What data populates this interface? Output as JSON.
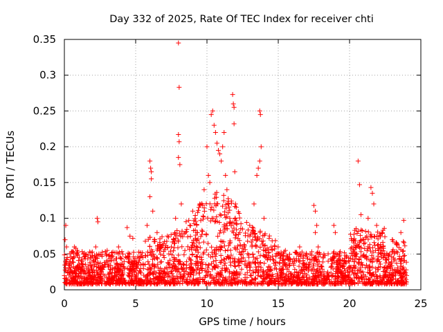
{
  "chart_data": {
    "type": "scatter",
    "title": "Day 332 of 2025, Rate Of TEC Index for receiver chti",
    "xlabel": "GPS time / hours",
    "ylabel": "ROTI / TECUs",
    "xlim": [
      0,
      25
    ],
    "ylim": [
      0,
      0.35
    ],
    "xticks": [
      0,
      5,
      10,
      15,
      20,
      25
    ],
    "xtick_labels": [
      "0",
      "5",
      "10",
      "15",
      "20",
      "25"
    ],
    "yticks": [
      0,
      0.05,
      0.1,
      0.15,
      0.2,
      0.25,
      0.3,
      0.35
    ],
    "ytick_labels": [
      "0",
      "0.05",
      "0.1",
      "0.15",
      "0.2",
      "0.25",
      "0.3",
      "0.35"
    ],
    "grid": true,
    "marker": "+",
    "color": "#ff0000",
    "series": [
      {
        "values": [
          [
            0.0,
            0.02
          ],
          [
            0.05,
            0.07
          ],
          [
            0.1,
            0.09
          ],
          [
            0.15,
            0.06
          ],
          [
            0.2,
            0.045
          ],
          [
            0.3,
            0.03
          ],
          [
            0.5,
            0.025
          ],
          [
            0.7,
            0.06
          ],
          [
            0.8,
            0.058
          ],
          [
            0.9,
            0.055
          ],
          [
            1.0,
            0.02
          ],
          [
            1.3,
            0.035
          ],
          [
            1.6,
            0.015
          ],
          [
            2.0,
            0.04
          ],
          [
            2.3,
            0.1
          ],
          [
            2.35,
            0.095
          ],
          [
            2.2,
            0.06
          ],
          [
            2.5,
            0.03
          ],
          [
            3.0,
            0.055
          ],
          [
            3.2,
            0.04
          ],
          [
            3.5,
            0.02
          ],
          [
            3.8,
            0.06
          ],
          [
            4.1,
            0.05
          ],
          [
            4.4,
            0.087
          ],
          [
            4.6,
            0.075
          ],
          [
            4.8,
            0.072
          ],
          [
            5.0,
            0.03
          ],
          [
            5.5,
            0.045
          ],
          [
            5.8,
            0.09
          ],
          [
            6.0,
            0.18
          ],
          [
            6.05,
            0.17
          ],
          [
            6.1,
            0.165
          ],
          [
            6.1,
            0.155
          ],
          [
            6.0,
            0.13
          ],
          [
            6.2,
            0.11
          ],
          [
            6.5,
            0.08
          ],
          [
            6.8,
            0.06
          ],
          [
            7.0,
            0.045
          ],
          [
            7.5,
            0.06
          ],
          [
            7.8,
            0.1
          ],
          [
            8.0,
            0.345
          ],
          [
            8.05,
            0.283
          ],
          [
            8.0,
            0.217
          ],
          [
            8.05,
            0.207
          ],
          [
            8.0,
            0.185
          ],
          [
            8.1,
            0.175
          ],
          [
            8.2,
            0.12
          ],
          [
            8.5,
            0.08
          ],
          [
            8.8,
            0.09
          ],
          [
            9.0,
            0.11
          ],
          [
            9.3,
            0.08
          ],
          [
            9.5,
            0.12
          ],
          [
            9.8,
            0.14
          ],
          [
            10.0,
            0.2
          ],
          [
            10.1,
            0.16
          ],
          [
            10.2,
            0.15
          ],
          [
            10.3,
            0.245
          ],
          [
            10.4,
            0.25
          ],
          [
            10.5,
            0.23
          ],
          [
            10.6,
            0.22
          ],
          [
            10.7,
            0.205
          ],
          [
            10.8,
            0.195
          ],
          [
            10.9,
            0.19
          ],
          [
            11.0,
            0.18
          ],
          [
            11.1,
            0.2
          ],
          [
            11.2,
            0.22
          ],
          [
            11.3,
            0.16
          ],
          [
            11.4,
            0.14
          ],
          [
            11.5,
            0.12
          ],
          [
            11.6,
            0.1
          ],
          [
            11.8,
            0.273
          ],
          [
            11.85,
            0.26
          ],
          [
            11.9,
            0.255
          ],
          [
            11.9,
            0.232
          ],
          [
            11.95,
            0.165
          ],
          [
            12.0,
            0.12
          ],
          [
            12.3,
            0.08
          ],
          [
            12.6,
            0.06
          ],
          [
            13.0,
            0.09
          ],
          [
            13.3,
            0.12
          ],
          [
            13.5,
            0.16
          ],
          [
            13.7,
            0.25
          ],
          [
            13.75,
            0.245
          ],
          [
            13.8,
            0.2
          ],
          [
            13.7,
            0.18
          ],
          [
            13.6,
            0.17
          ],
          [
            14.0,
            0.1
          ],
          [
            14.5,
            0.06
          ],
          [
            15.0,
            0.05
          ],
          [
            15.5,
            0.055
          ],
          [
            16.0,
            0.04
          ],
          [
            16.5,
            0.06
          ],
          [
            17.0,
            0.03
          ],
          [
            17.5,
            0.118
          ],
          [
            17.6,
            0.11
          ],
          [
            17.7,
            0.09
          ],
          [
            17.6,
            0.08
          ],
          [
            17.8,
            0.06
          ],
          [
            18.2,
            0.05
          ],
          [
            18.5,
            0.04
          ],
          [
            18.9,
            0.09
          ],
          [
            19.0,
            0.08
          ],
          [
            19.2,
            0.03
          ],
          [
            19.5,
            0.02
          ],
          [
            20.0,
            0.025
          ],
          [
            20.3,
            0.06
          ],
          [
            20.6,
            0.18
          ],
          [
            20.7,
            0.147
          ],
          [
            20.8,
            0.105
          ],
          [
            21.0,
            0.07
          ],
          [
            21.3,
            0.1
          ],
          [
            21.5,
            0.143
          ],
          [
            21.6,
            0.135
          ],
          [
            21.7,
            0.12
          ],
          [
            21.9,
            0.09
          ],
          [
            22.2,
            0.05
          ],
          [
            22.5,
            0.02
          ],
          [
            22.8,
            0.05
          ],
          [
            23.0,
            0.07
          ],
          [
            23.3,
            0.065
          ],
          [
            23.6,
            0.08
          ],
          [
            23.8,
            0.097
          ],
          [
            24.0,
            0.02
          ]
        ]
      }
    ]
  }
}
